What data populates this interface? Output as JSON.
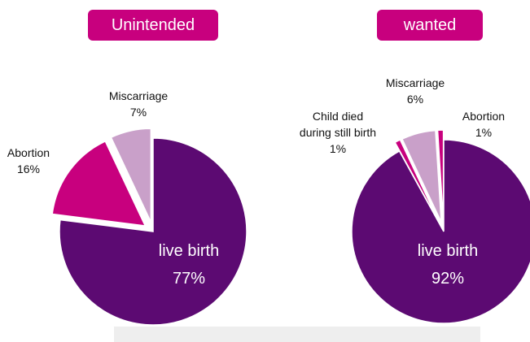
{
  "chart_data": [
    {
      "type": "pie",
      "title": "Unintended",
      "categories": [
        "live birth",
        "Abortion",
        "Miscarriage"
      ],
      "values": [
        77,
        16,
        7
      ],
      "value_labels": [
        "77%",
        "16%",
        "7%"
      ],
      "colors": [
        "#5c0a72",
        "#c8007e",
        "#c9a0c9"
      ]
    },
    {
      "type": "pie",
      "title": "wanted",
      "categories": [
        "live birth",
        "Child died during still birth",
        "Miscarriage",
        "Abortion"
      ],
      "values": [
        92,
        1,
        6,
        1
      ],
      "value_labels": [
        "92%",
        "1%",
        "6%",
        "1%"
      ],
      "colors": [
        "#5c0a72",
        "#c8007e",
        "#c9a0c9",
        "#c8007e"
      ]
    }
  ]
}
